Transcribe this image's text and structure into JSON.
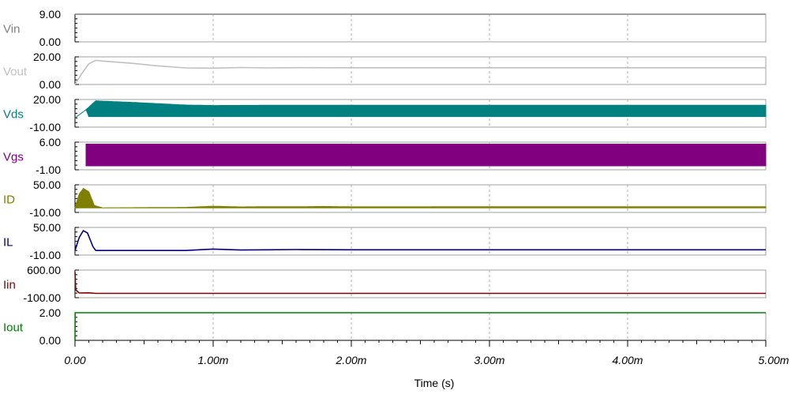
{
  "chart_data": {
    "type": "line",
    "xlabel": "Time (s)",
    "x_tick_labels": [
      "0.00",
      "1.00m",
      "2.00m",
      "3.00m",
      "4.00m",
      "5.00m"
    ],
    "xlim": [
      0,
      0.005
    ],
    "grid": true,
    "series": [
      {
        "name": "Vin",
        "color": "#808080",
        "ylim": [
          0,
          9
        ],
        "ytick_labels": [
          "9.00",
          "0.00"
        ],
        "points": [
          [
            0,
            9
          ],
          [
            0.005,
            9
          ]
        ]
      },
      {
        "name": "Vout",
        "color": "#c0c0c0",
        "ylim": [
          0,
          20
        ],
        "ytick_labels": [
          "20.00",
          "0.00"
        ],
        "points": [
          [
            0,
            0
          ],
          [
            5e-05,
            8
          ],
          [
            0.0001,
            15
          ],
          [
            0.00015,
            17.5
          ],
          [
            0.0002,
            17
          ],
          [
            0.0004,
            15.5
          ],
          [
            0.0006,
            13.5
          ],
          [
            0.0008,
            12
          ],
          [
            0.001,
            11.8
          ],
          [
            0.0012,
            12.3
          ],
          [
            0.0014,
            12
          ],
          [
            0.0016,
            12.2
          ],
          [
            0.002,
            12.1
          ],
          [
            0.005,
            12.1
          ]
        ]
      },
      {
        "name": "Vds",
        "color": "#008080",
        "ylim": [
          -10,
          20
        ],
        "ytick_labels": [
          "20.00",
          "-10.00"
        ],
        "switching_start": 8e-05,
        "upper": [
          [
            0,
            0
          ],
          [
            8e-05,
            9
          ],
          [
            0.00015,
            18.5
          ],
          [
            0.0004,
            17
          ],
          [
            0.0008,
            14
          ],
          [
            0.001,
            13.5
          ],
          [
            0.0015,
            13.8
          ],
          [
            0.002,
            13.8
          ],
          [
            0.005,
            13.8
          ]
        ],
        "lower": [
          [
            0,
            0
          ],
          [
            8e-05,
            9
          ],
          [
            0.0001,
            1.5
          ],
          [
            0.005,
            1.5
          ]
        ]
      },
      {
        "name": "Vgs",
        "color": "#800080",
        "ylim": [
          -1,
          6
        ],
        "ytick_labels": [
          "6.00",
          "-1.00"
        ],
        "switching_start": 8e-05,
        "upper": [
          [
            8e-05,
            5.5
          ],
          [
            0.005,
            5.5
          ]
        ],
        "lower": [
          [
            8e-05,
            0
          ],
          [
            0.005,
            0
          ]
        ]
      },
      {
        "name": "ID",
        "color": "#808000",
        "ylim": [
          -10,
          50
        ],
        "ytick_labels": [
          "50.00",
          "-10.00"
        ],
        "upper": [
          [
            0,
            0
          ],
          [
            3e-05,
            30
          ],
          [
            6e-05,
            42
          ],
          [
            0.0001,
            35
          ],
          [
            0.00014,
            5
          ],
          [
            0.0002,
            0
          ],
          [
            0.0008,
            1
          ],
          [
            0.001,
            3.5
          ],
          [
            0.0012,
            2
          ],
          [
            0.0014,
            2.5
          ],
          [
            0.0016,
            2.3
          ],
          [
            0.0018,
            3
          ],
          [
            0.002,
            2.2
          ],
          [
            0.005,
            2.5
          ]
        ],
        "lower": [
          [
            0,
            0
          ],
          [
            0.005,
            0
          ]
        ]
      },
      {
        "name": "IL",
        "color": "#000080",
        "ylim": [
          -10,
          50
        ],
        "ytick_labels": [
          "50.00",
          "-10.00"
        ],
        "points": [
          [
            0,
            0
          ],
          [
            3e-05,
            28
          ],
          [
            6e-05,
            43
          ],
          [
            9e-05,
            38
          ],
          [
            0.00013,
            8
          ],
          [
            0.00015,
            0
          ],
          [
            0.0008,
            0
          ],
          [
            0.001,
            3
          ],
          [
            0.0012,
            1
          ],
          [
            0.0014,
            1.5
          ],
          [
            0.0016,
            2
          ],
          [
            0.002,
            1.5
          ],
          [
            0.005,
            1.5
          ]
        ]
      },
      {
        "name": "Iin",
        "color": "#800000",
        "ylim": [
          -100,
          600
        ],
        "ytick_labels": [
          "600.00",
          "-100.00"
        ],
        "points": [
          [
            0,
            550
          ],
          [
            5e-06,
            100
          ],
          [
            3e-05,
            20
          ],
          [
            0.0001,
            25
          ],
          [
            0.00015,
            10
          ],
          [
            0.005,
            10
          ]
        ]
      },
      {
        "name": "Iout",
        "color": "#008000",
        "ylim": [
          0,
          2
        ],
        "ytick_labels": [
          "2.00",
          "0.00"
        ],
        "points": [
          [
            0,
            0
          ],
          [
            1e-06,
            2
          ],
          [
            0.005,
            2
          ]
        ]
      }
    ]
  }
}
